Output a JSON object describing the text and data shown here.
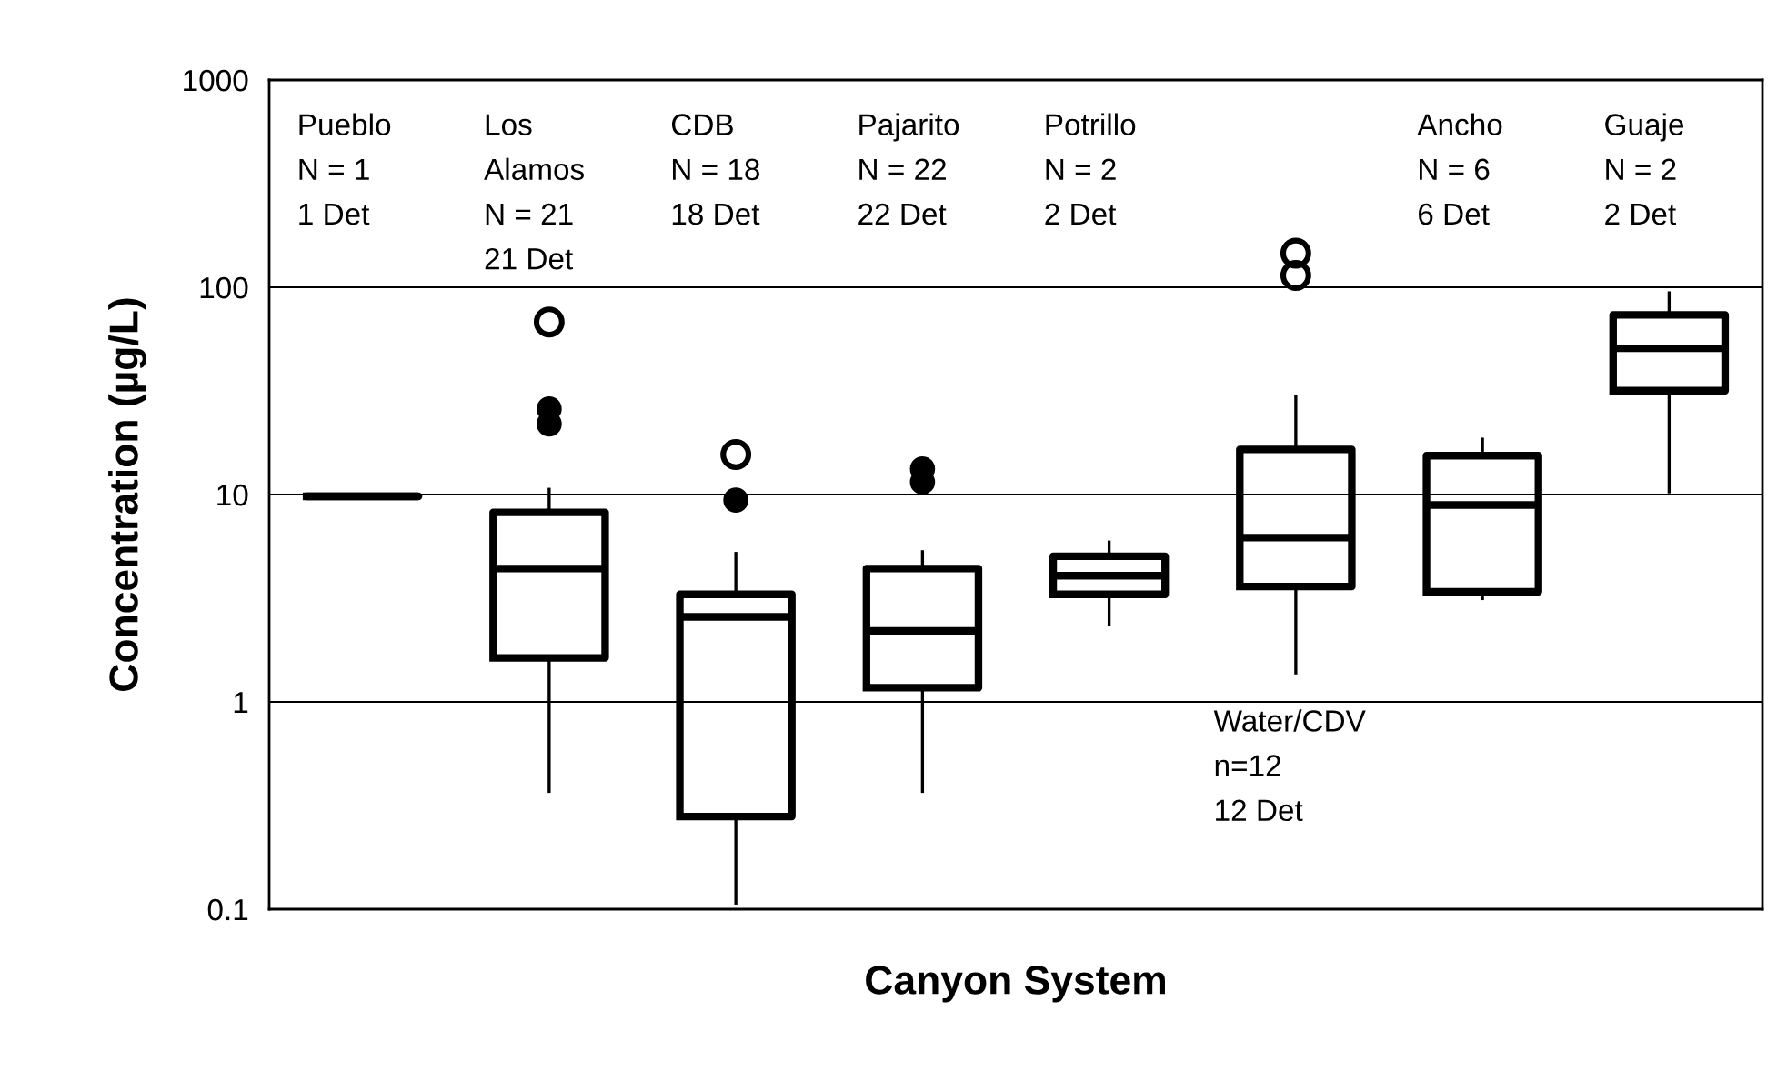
{
  "chart_data": {
    "type": "box",
    "xlabel": "Canyon System",
    "ylabel": "Concentration (µg/L)",
    "categories": [
      "Pueblo",
      "Los\nAlamos",
      "CDB",
      "Pajarito",
      "Potrillo",
      "Water/CDV",
      "Ancho",
      "Guaje"
    ],
    "boxes": [
      {
        "low": 9.8,
        "q1": 9.8,
        "median": 9.8,
        "q3": 9.8,
        "high": 9.8
      },
      {
        "low": 0.37,
        "q1": 1.63,
        "median": 4.4,
        "q3": 8.2,
        "high": 10.6,
        "outliers": [
          68
        ]
      },
      {
        "low": 0.107,
        "q1": 0.28,
        "median": 2.57,
        "q3": 3.3,
        "high": 5.2,
        "outliers": [
          15.6
        ]
      },
      {
        "low": 0.37,
        "q1": 1.17,
        "median": 2.2,
        "q3": 4.4,
        "high": 5.3
      },
      {
        "low": 2.37,
        "q1": 3.3,
        "median": 4.06,
        "q3": 5.04,
        "high": 5.9
      },
      {
        "low": 1.38,
        "q1": 3.6,
        "median": 6.2,
        "q3": 16.5,
        "high": 29.7,
        "outliers": [
          146,
          114
        ]
      },
      {
        "low": 3.15,
        "q1": 3.4,
        "median": 8.9,
        "q3": 15.4,
        "high": 18.5
      },
      {
        "low": 10.3,
        "q1": 31.7,
        "median": 50.8,
        "q3": 73.6,
        "high": 94
      }
    ],
    "series": [
      {
        "type": "scatter",
        "color": "#000000",
        "x": [
          "Los\nAlamos",
          "Los\nAlamos",
          "CDB",
          "Pajarito",
          "Pajarito"
        ],
        "values": [
          25.9,
          21.9,
          9.4,
          13.3,
          11.5
        ]
      }
    ],
    "annotations": [
      "N = 1\n1 Det",
      "N = 21\n21 Det",
      "N = 18\n18 Det",
      "N = 22\n22 Det",
      "N = 2\n2 Det",
      "n=12\n12 Det",
      "N = 6\n6 Det",
      "N = 2\n2 Det"
    ],
    "log": true,
    "ylim": [
      0.1,
      1000
    ],
    "yticks": [
      0.1,
      1,
      10,
      100,
      1000
    ],
    "grid": "y",
    "marker": "circle"
  }
}
